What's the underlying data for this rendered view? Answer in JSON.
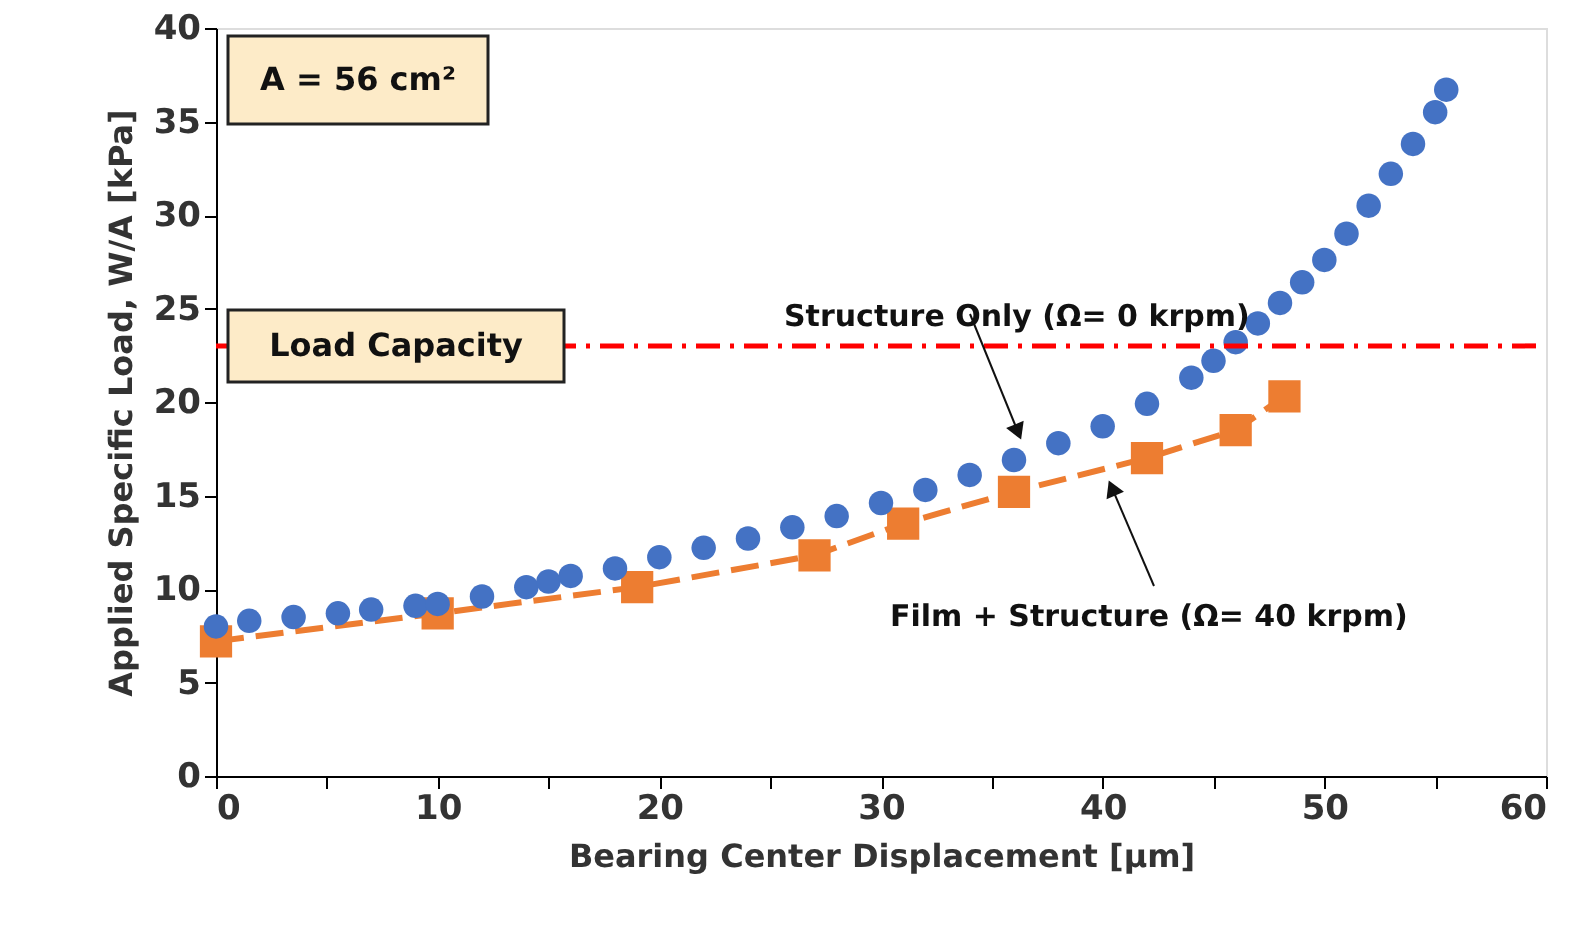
{
  "chart_data": {
    "type": "scatter",
    "xlabel": "Bearing Center Displacement [μm]",
    "ylabel": "Applied Specific Load, W/A [kPa]",
    "xlim": [
      0,
      60
    ],
    "xticks": [
      0,
      {
        "value": 5,
        "label": null
      },
      10,
      {
        "value": 15,
        "label": null
      },
      20,
      {
        "value": 25,
        "label": null
      },
      30,
      {
        "value": 35,
        "label": null
      },
      40,
      {
        "value": 45,
        "label": null
      },
      50,
      {
        "value": 55,
        "label": null
      },
      60
    ],
    "ylim": [
      0,
      40
    ],
    "yticks": [
      0,
      5,
      10,
      15,
      20,
      25,
      30,
      35,
      40
    ],
    "grid": false,
    "legend": false,
    "annotations": [
      "A = 56 cm²"
    ],
    "ref_lines": [
      {
        "axis": "y",
        "value": 23,
        "label": "Load Capacity",
        "color": "#ff0000",
        "line_style": "dashdot"
      }
    ],
    "series": [
      {
        "name": "Structure Only (Ω= 0 krpm)",
        "marker": "circle",
        "color": "#4472c4",
        "x": [
          0,
          1.5,
          3.5,
          5.5,
          7,
          9,
          10,
          12,
          14,
          15,
          16,
          18,
          20,
          22,
          24,
          26,
          28,
          30,
          32,
          34,
          36,
          38,
          40,
          42,
          44,
          45,
          46,
          47,
          48,
          49,
          50,
          51,
          52,
          53,
          54,
          55,
          55.5
        ],
        "values": [
          8.0,
          8.3,
          8.5,
          8.7,
          8.9,
          9.1,
          9.2,
          9.6,
          10.1,
          10.4,
          10.7,
          11.1,
          11.7,
          12.2,
          12.7,
          13.3,
          13.9,
          14.6,
          15.3,
          16.1,
          16.9,
          17.8,
          18.7,
          19.9,
          21.3,
          22.2,
          23.2,
          24.2,
          25.3,
          26.4,
          27.6,
          29.0,
          30.5,
          32.2,
          33.8,
          35.5,
          36.7
        ]
      },
      {
        "name": "Film + Structure (Ω= 40 krpm)",
        "type": "line",
        "marker": "square",
        "line_style": "dashed",
        "color": "#ed7d31",
        "x": [
          0,
          10,
          19,
          27,
          31,
          36,
          42,
          46,
          48.2
        ],
        "values": [
          7.2,
          8.7,
          10.1,
          11.8,
          13.5,
          15.2,
          17.0,
          18.5,
          20.3
        ]
      }
    ]
  }
}
